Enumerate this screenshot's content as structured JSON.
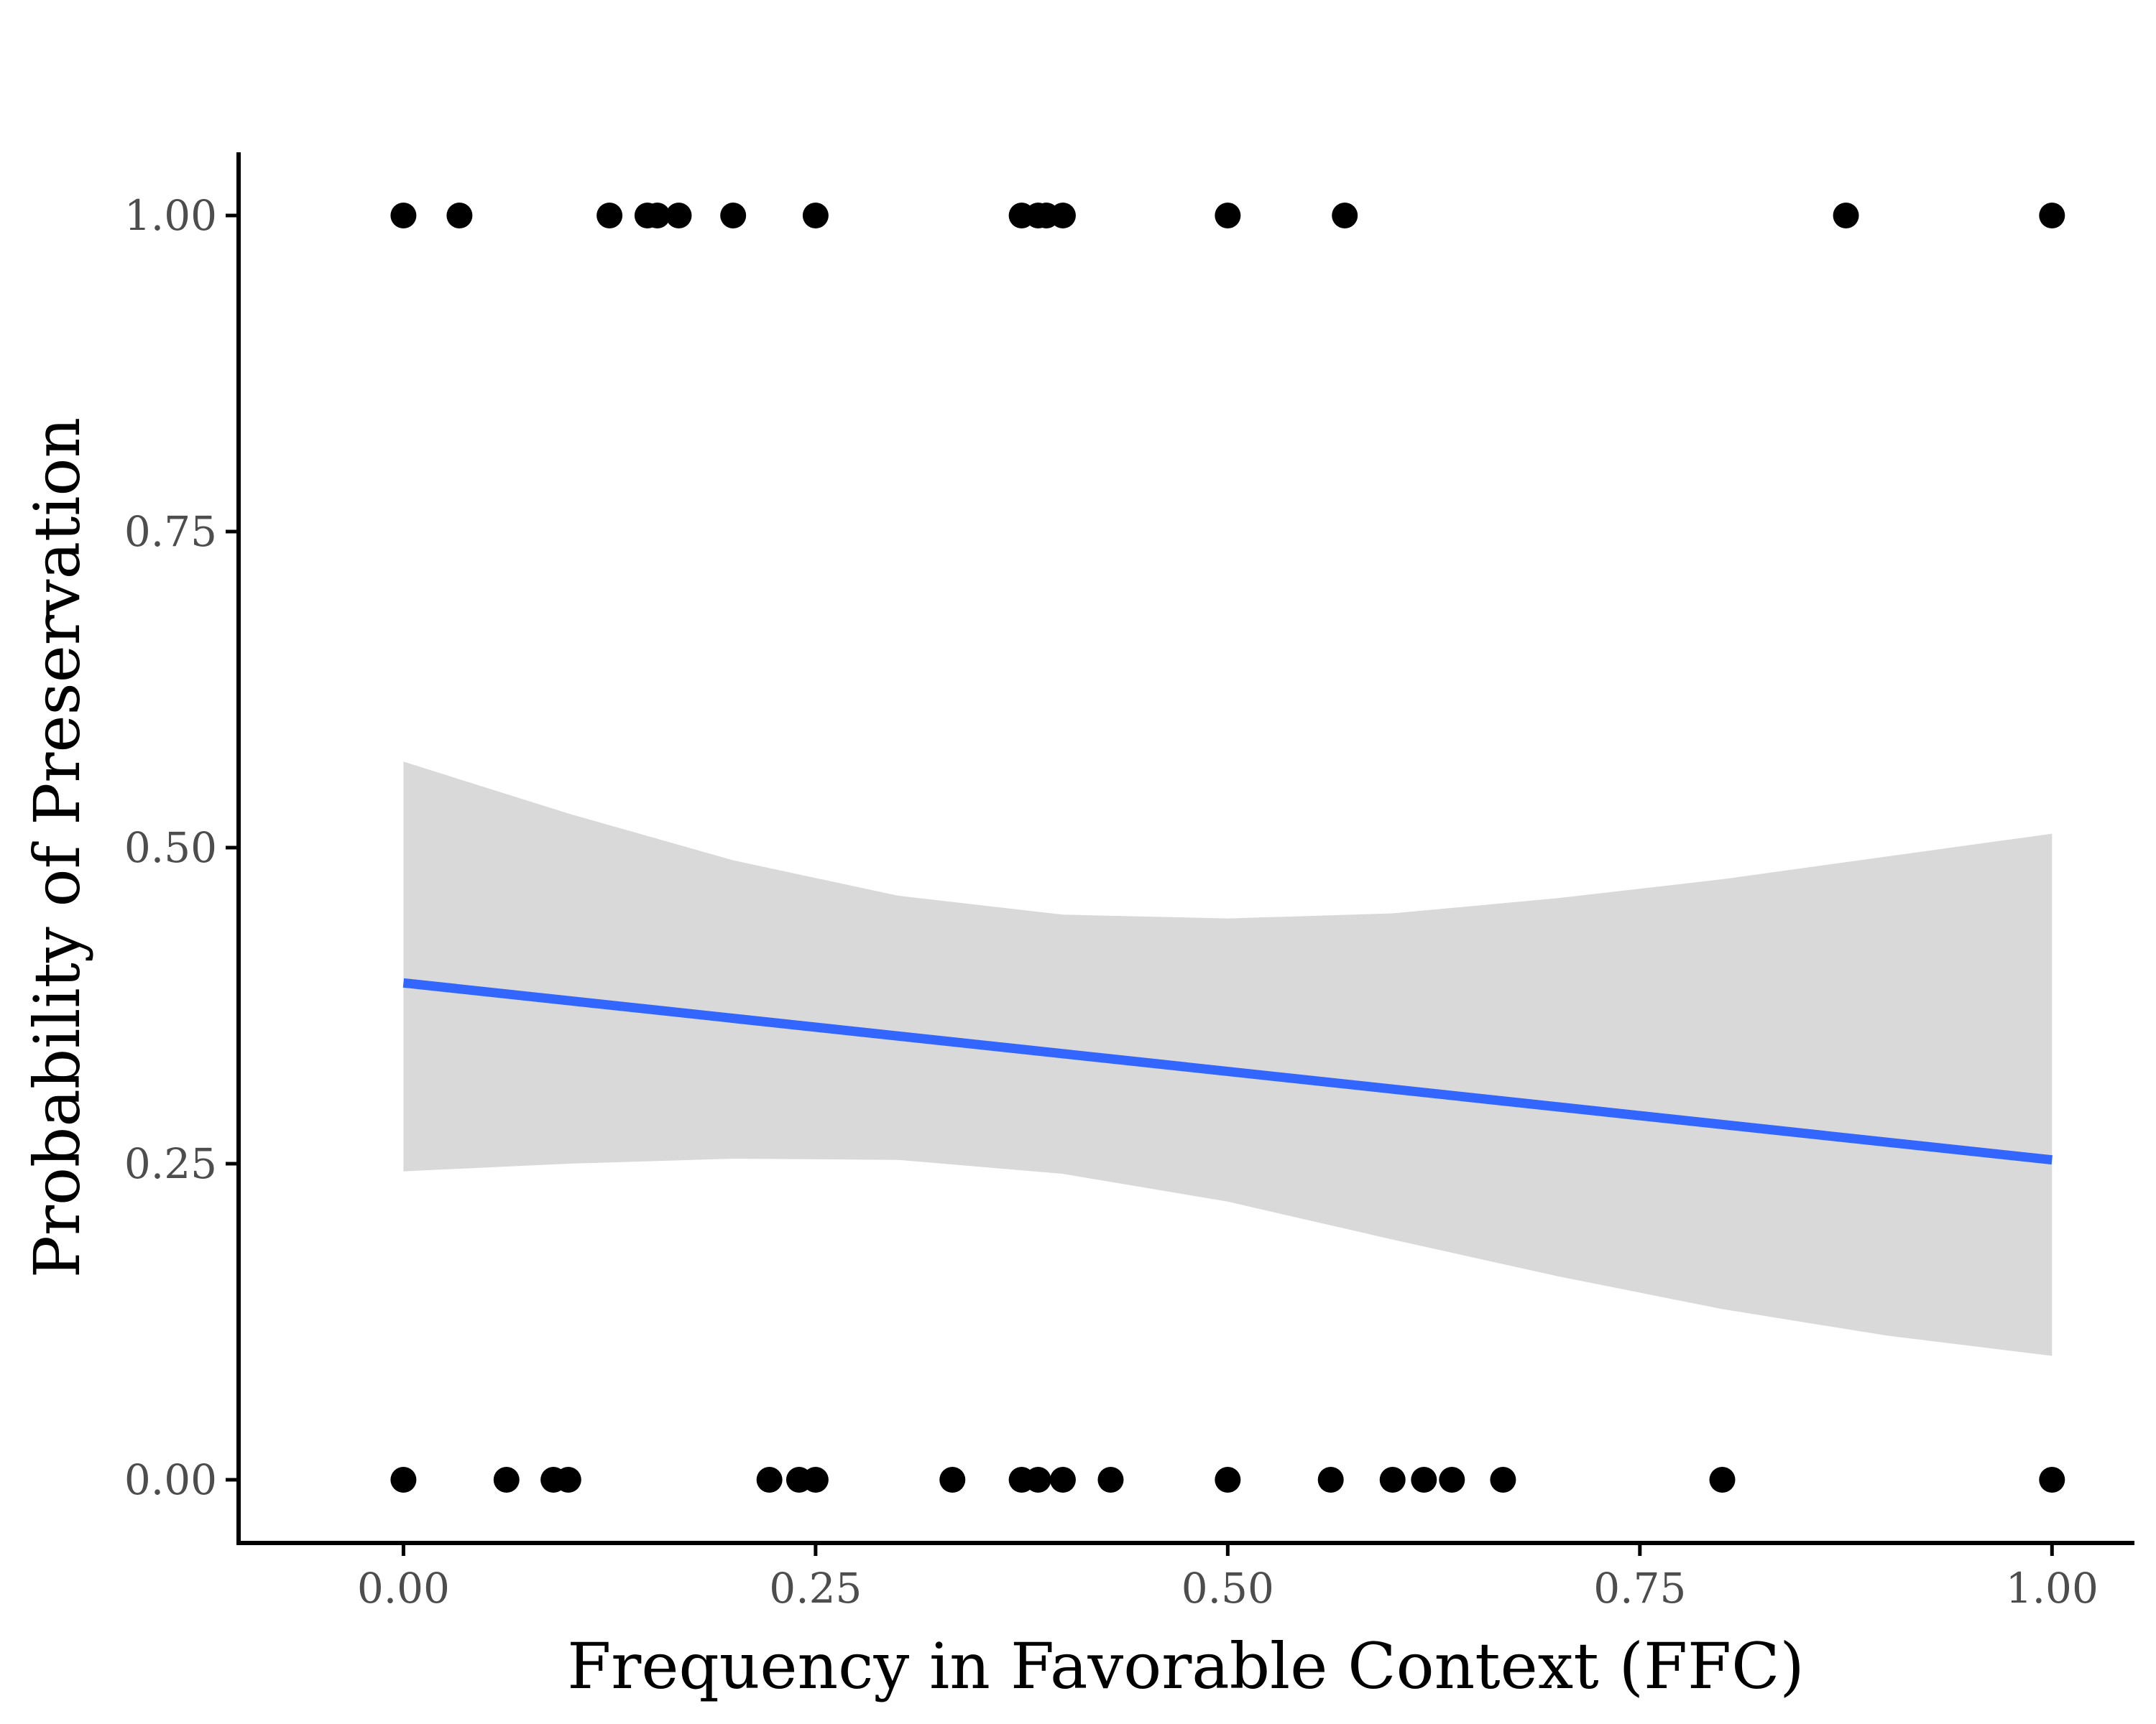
{
  "chart_data": {
    "type": "scatter",
    "title": "",
    "xlabel": "Frequency in Favorable Context (FFC)",
    "ylabel": "Probability of Preservation",
    "xlim": [
      -0.1,
      1.05
    ],
    "ylim": [
      -0.05,
      1.05
    ],
    "x_ticks": [
      0,
      0.25,
      0.5,
      0.75,
      1
    ],
    "x_tick_labels": [
      "0.00",
      "0.25",
      "0.50",
      "0.75",
      "1.00"
    ],
    "y_ticks": [
      0,
      0.25,
      0.5,
      0.75,
      1
    ],
    "y_tick_labels": [
      "0.00",
      "0.25",
      "0.50",
      "0.75",
      "1.00"
    ],
    "grid": false,
    "legend": "none",
    "points": [
      {
        "x": 0.0,
        "y": 1
      },
      {
        "x": 0.034,
        "y": 1
      },
      {
        "x": 0.125,
        "y": 1
      },
      {
        "x": 0.148,
        "y": 1
      },
      {
        "x": 0.154,
        "y": 1
      },
      {
        "x": 0.167,
        "y": 1
      },
      {
        "x": 0.2,
        "y": 1
      },
      {
        "x": 0.25,
        "y": 1
      },
      {
        "x": 0.375,
        "y": 1
      },
      {
        "x": 0.385,
        "y": 1
      },
      {
        "x": 0.39,
        "y": 1
      },
      {
        "x": 0.4,
        "y": 1
      },
      {
        "x": 0.5,
        "y": 1
      },
      {
        "x": 0.571,
        "y": 1
      },
      {
        "x": 0.875,
        "y": 1
      },
      {
        "x": 1.0,
        "y": 1
      },
      {
        "x": 0.0,
        "y": 0
      },
      {
        "x": 0.0625,
        "y": 0
      },
      {
        "x": 0.091,
        "y": 0
      },
      {
        "x": 0.1,
        "y": 0
      },
      {
        "x": 0.222,
        "y": 0
      },
      {
        "x": 0.24,
        "y": 0
      },
      {
        "x": 0.25,
        "y": 0
      },
      {
        "x": 0.333,
        "y": 0
      },
      {
        "x": 0.375,
        "y": 0
      },
      {
        "x": 0.385,
        "y": 0
      },
      {
        "x": 0.4,
        "y": 0
      },
      {
        "x": 0.429,
        "y": 0
      },
      {
        "x": 0.5,
        "y": 0
      },
      {
        "x": 0.5625,
        "y": 0
      },
      {
        "x": 0.6,
        "y": 0
      },
      {
        "x": 0.619,
        "y": 0
      },
      {
        "x": 0.636,
        "y": 0
      },
      {
        "x": 0.667,
        "y": 0
      },
      {
        "x": 0.8,
        "y": 0
      },
      {
        "x": 1.0,
        "y": 0
      }
    ],
    "fit_line": {
      "x": [
        0,
        1
      ],
      "y": [
        0.393,
        0.253
      ],
      "color": "#3366ff"
    },
    "confidence_band": {
      "x": [
        0,
        0.1,
        0.2,
        0.3,
        0.4,
        0.5,
        0.6,
        0.7,
        0.8,
        0.9,
        1.0
      ],
      "upper": [
        0.568,
        0.527,
        0.49,
        0.462,
        0.447,
        0.444,
        0.448,
        0.46,
        0.475,
        0.493,
        0.511
      ],
      "lower": [
        0.244,
        0.25,
        0.254,
        0.253,
        0.242,
        0.22,
        0.19,
        0.161,
        0.135,
        0.114,
        0.098
      ],
      "color": "#d9d9d9"
    },
    "point_color": "#000000"
  }
}
